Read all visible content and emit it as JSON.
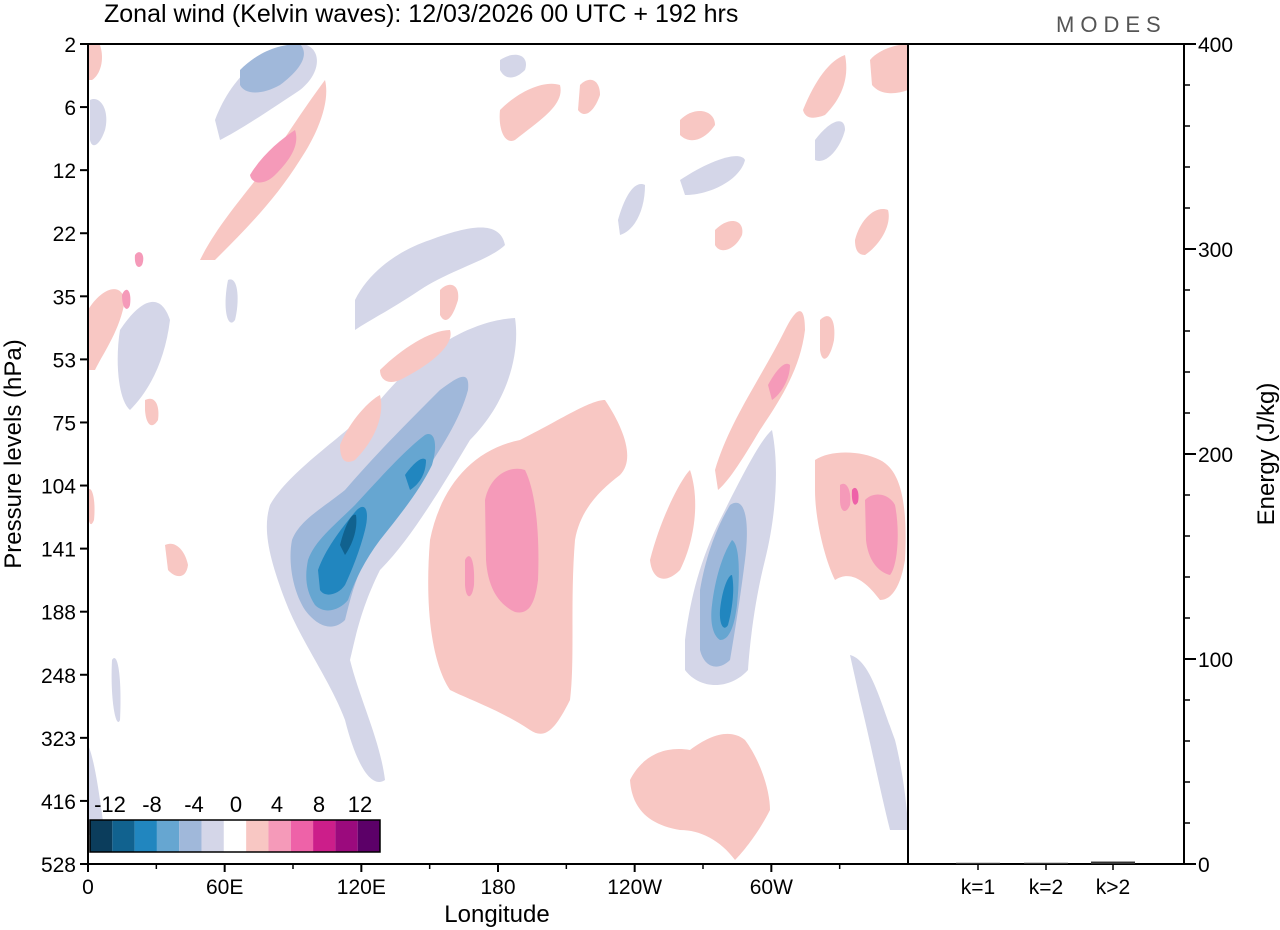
{
  "chart_data": [
    {
      "type": "heatmap",
      "title": "Zonal wind (Kelvin waves):  12/03/2026  00 UTC  + 192 hrs",
      "logo": "MODES",
      "xlabel": "Longitude",
      "ylabel": "Pressure levels (hPa)",
      "x_ticks": [
        "0",
        "60E",
        "120E",
        "180",
        "120W",
        "60W"
      ],
      "x_range": [
        0,
        360
      ],
      "y_ticks": [
        "2",
        "6",
        "12",
        "22",
        "35",
        "53",
        "75",
        "104",
        "141",
        "188",
        "248",
        "323",
        "416",
        "528"
      ],
      "y_range": [
        2,
        528
      ],
      "colorbar": {
        "labels": [
          "-12",
          "-8",
          "-4",
          "0",
          "4",
          "8",
          "12"
        ],
        "levels": [
          -14,
          -12,
          -10,
          -8,
          -6,
          -4,
          -2,
          2,
          4,
          6,
          8,
          10,
          12,
          14
        ],
        "colors": [
          "#0b3d5c",
          "#11628f",
          "#2186bf",
          "#66a6d1",
          "#a0b8da",
          "#d4d6e8",
          "#ffffff",
          "#f8c7c3",
          "#f59ab9",
          "#ee62a8",
          "#cc1e8a",
          "#9b0a7d",
          "#5c0068"
        ]
      },
      "features": [
        {
          "name": "negative anomaly west of dateline",
          "lon_center": 112,
          "pressure_center": 141,
          "min_value": -12
        },
        {
          "name": "negative anomaly near 60W",
          "lon_center": 282,
          "pressure_center": 188,
          "min_value": -10
        },
        {
          "name": "positive anomaly near dateline",
          "lon_center": 185,
          "pressure_center": 141,
          "max_value": 6
        },
        {
          "name": "positive anomaly east of 60W",
          "lon_center": 345,
          "pressure_center": 130,
          "max_value": 6
        }
      ]
    },
    {
      "type": "bar",
      "ylabel": "Energy (J/kg)",
      "categories": [
        "k=1",
        "k=2",
        "k>2"
      ],
      "values": [
        0.4,
        0.6,
        1.2
      ],
      "ylim": [
        0,
        400
      ],
      "y_ticks": [
        "0",
        "100",
        "200",
        "300",
        "400"
      ]
    }
  ]
}
